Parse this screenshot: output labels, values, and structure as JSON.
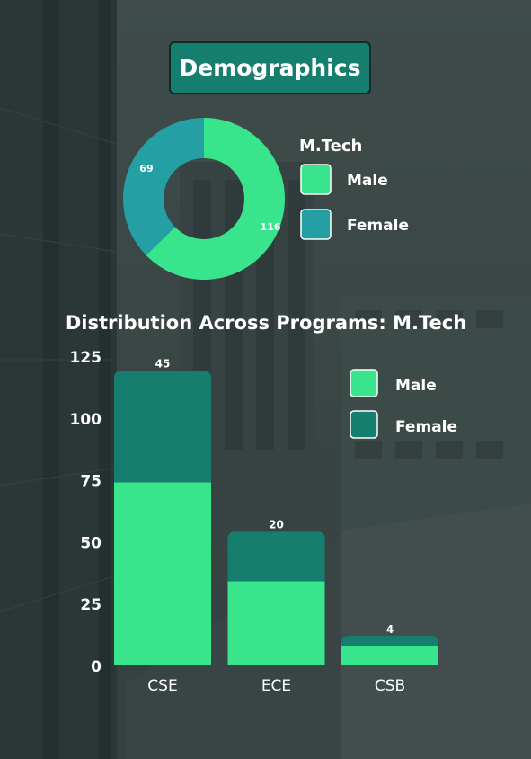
{
  "header": {
    "title": "Demographics"
  },
  "colors": {
    "male": "#39e58c",
    "female_donut": "#24a0a4",
    "female_bar": "#157e6f",
    "text": "#ffffff"
  },
  "chart_data": [
    {
      "type": "pie",
      "variant": "donut",
      "legend_title": "M.Tech",
      "legend_position": "right",
      "slices": [
        {
          "label": "Male",
          "value": 116
        },
        {
          "label": "Female",
          "value": 69
        }
      ]
    },
    {
      "type": "bar",
      "stacked": true,
      "title": "Distribution Across Programs: M.Tech",
      "categories": [
        "CSE",
        "ECE",
        "CSB"
      ],
      "series": [
        {
          "name": "Male",
          "values": [
            74,
            34,
            8
          ]
        },
        {
          "name": "Female",
          "values": [
            45,
            20,
            4
          ]
        }
      ],
      "ylim": [
        0,
        125
      ],
      "yticks": [
        0,
        25,
        50,
        75,
        100,
        125
      ],
      "legend_position": "top-right",
      "grid": false
    }
  ]
}
